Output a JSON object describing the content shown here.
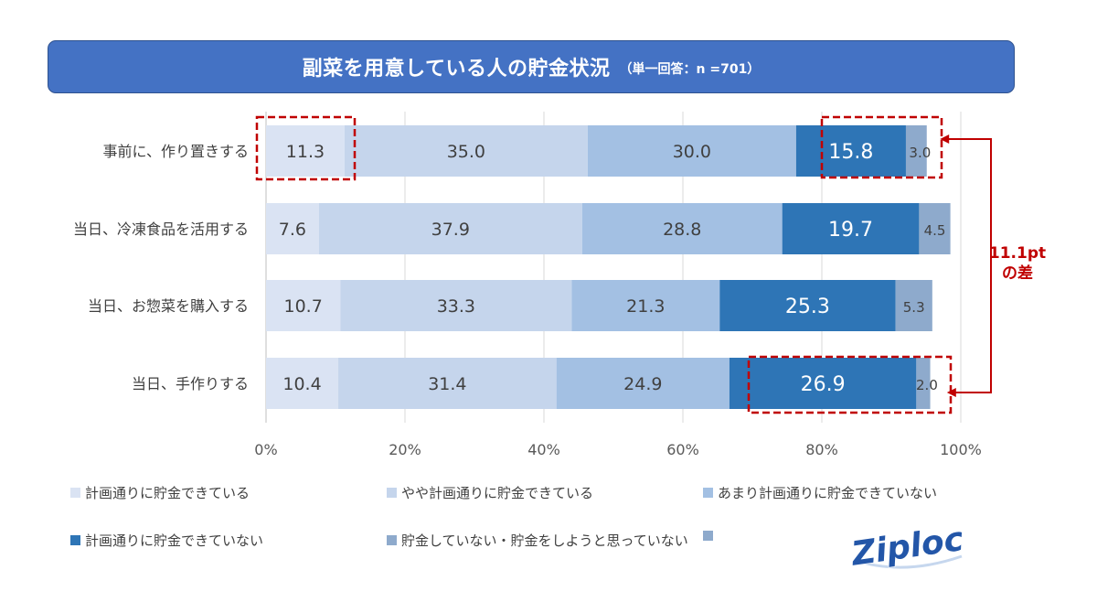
{
  "header": {
    "title": "副菜を用意している人の貯金状況",
    "subtitle": "（単一回答：n =701）"
  },
  "chart_data": {
    "type": "bar",
    "orientation": "horizontal",
    "stacked": "percent",
    "categories": [
      "事前に、作り置きする",
      "当日、冷凍食品を活用する",
      "当日、お惣菜を購入する",
      "当日、手作りする"
    ],
    "series": [
      {
        "name": "計画通りに貯金できている",
        "color": "#dae3f3",
        "values": [
          11.3,
          7.6,
          10.7,
          10.4
        ]
      },
      {
        "name": "やや計画通りに貯金できている",
        "color": "#c5d5ec",
        "values": [
          35.0,
          37.9,
          33.3,
          31.4
        ]
      },
      {
        "name": "あまり計画通りに貯金できていない",
        "color": "#a3c0e3",
        "values": [
          30.0,
          28.8,
          21.3,
          24.9
        ]
      },
      {
        "name": "計画通りに貯金できていない",
        "color": "#2e75b6",
        "values": [
          15.8,
          19.7,
          25.3,
          26.9
        ]
      },
      {
        "name": "貯金していない・貯金をしようと思っていない",
        "color": "#8eaacc",
        "values": [
          3.0,
          4.5,
          5.3,
          2.0
        ]
      }
    ],
    "x_ticks": [
      "0%",
      "20%",
      "40%",
      "60%",
      "80%",
      "100%"
    ],
    "xlim": [
      0,
      100
    ],
    "grid": true,
    "legend_position": "bottom",
    "annotation": {
      "line1": "11.1pt",
      "line2": "の差",
      "color": "#c00000"
    }
  },
  "legend_extra_swatch_color": "#8eaacc",
  "logo": {
    "text": "Ziploc",
    "icon": "ziploc-logo"
  }
}
